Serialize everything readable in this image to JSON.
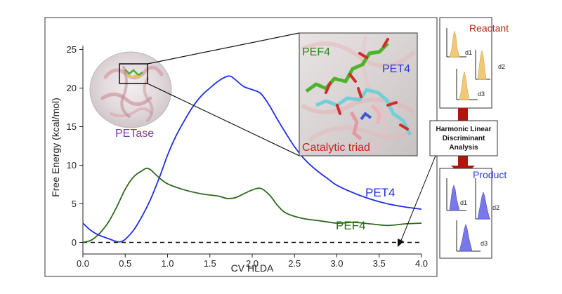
{
  "colors": {
    "pet4": "#1f2fe0",
    "pef4": "#2e6a1e",
    "reactant_label": "#b22a12",
    "product_label": "#2a3ad8",
    "petase_label": "#7b3aa6",
    "catalytic_label": "#cc2020",
    "arrow": "#b0160e",
    "reactant_hist": "#f0c878",
    "product_hist": "#7a78e8"
  },
  "chart_data": {
    "type": "line",
    "xlabel": "CV HLDA",
    "ylabel": "Free Energy (kcal/mol)",
    "xlim": [
      0.0,
      4.0
    ],
    "ylim": [
      -1.5,
      25.5
    ],
    "xticks": [
      "0.0",
      "0.5",
      "1.0",
      "1.5",
      "2.0",
      "2.5",
      "3.0",
      "3.5",
      "4.0"
    ],
    "yticks": [
      "0",
      "5",
      "10",
      "15",
      "20",
      "25"
    ],
    "grid": false,
    "reference_line": {
      "y": 0,
      "style": "dashed"
    },
    "series": [
      {
        "name": "PET4",
        "color": "#1f2fe0",
        "x": [
          0.0,
          0.1,
          0.2,
          0.3,
          0.4,
          0.45,
          0.5,
          0.6,
          0.7,
          0.8,
          0.9,
          1.0,
          1.1,
          1.2,
          1.3,
          1.4,
          1.5,
          1.6,
          1.7,
          1.75,
          1.8,
          1.9,
          2.0,
          2.1,
          2.2,
          2.3,
          2.4,
          2.5,
          2.6,
          2.7,
          2.8,
          2.9,
          3.0,
          3.2,
          3.4,
          3.6,
          3.8,
          4.0
        ],
        "y": [
          2.5,
          1.5,
          0.9,
          0.5,
          0.1,
          0.1,
          0.4,
          1.6,
          3.4,
          5.6,
          8.3,
          11.3,
          13.8,
          15.8,
          17.6,
          19.0,
          20.0,
          20.9,
          21.5,
          21.5,
          21.1,
          20.2,
          19.8,
          19.3,
          17.8,
          15.9,
          14.1,
          12.4,
          11.0,
          9.9,
          9.0,
          8.2,
          7.4,
          6.4,
          5.6,
          5.0,
          4.6,
          4.3
        ]
      },
      {
        "name": "PEF4",
        "color": "#2e6a1e",
        "x": [
          0.0,
          0.1,
          0.2,
          0.3,
          0.4,
          0.5,
          0.6,
          0.7,
          0.75,
          0.8,
          0.9,
          1.0,
          1.2,
          1.4,
          1.6,
          1.7,
          1.8,
          1.9,
          2.0,
          2.1,
          2.2,
          2.3,
          2.4,
          2.6,
          2.8,
          3.0,
          3.2,
          3.4,
          3.6,
          3.8,
          4.0
        ],
        "y": [
          0.0,
          0.3,
          1.2,
          2.6,
          4.6,
          6.9,
          8.5,
          9.3,
          9.6,
          9.4,
          8.4,
          7.6,
          6.8,
          6.3,
          6.0,
          5.7,
          5.8,
          6.3,
          6.8,
          7.0,
          6.2,
          4.8,
          3.8,
          3.1,
          2.8,
          2.5,
          2.6,
          2.4,
          2.2,
          2.4,
          2.5
        ]
      }
    ],
    "series_labels": [
      "PET4",
      "PEF4"
    ]
  },
  "figure": {
    "petase_label": "PETase",
    "inset": {
      "pef4_label": "PEF4",
      "pet4_label": "PET4",
      "catalytic_label": "Catalytic triad"
    },
    "reactant": {
      "title": "Reactant",
      "labels": [
        "d1",
        "d2",
        "d3"
      ]
    },
    "hlda_box": {
      "lines": [
        "Harmonic Linear",
        "Discriminant",
        "Analysis"
      ]
    },
    "product": {
      "title": "Product",
      "labels": [
        "d1",
        "d2",
        "d3"
      ]
    }
  }
}
